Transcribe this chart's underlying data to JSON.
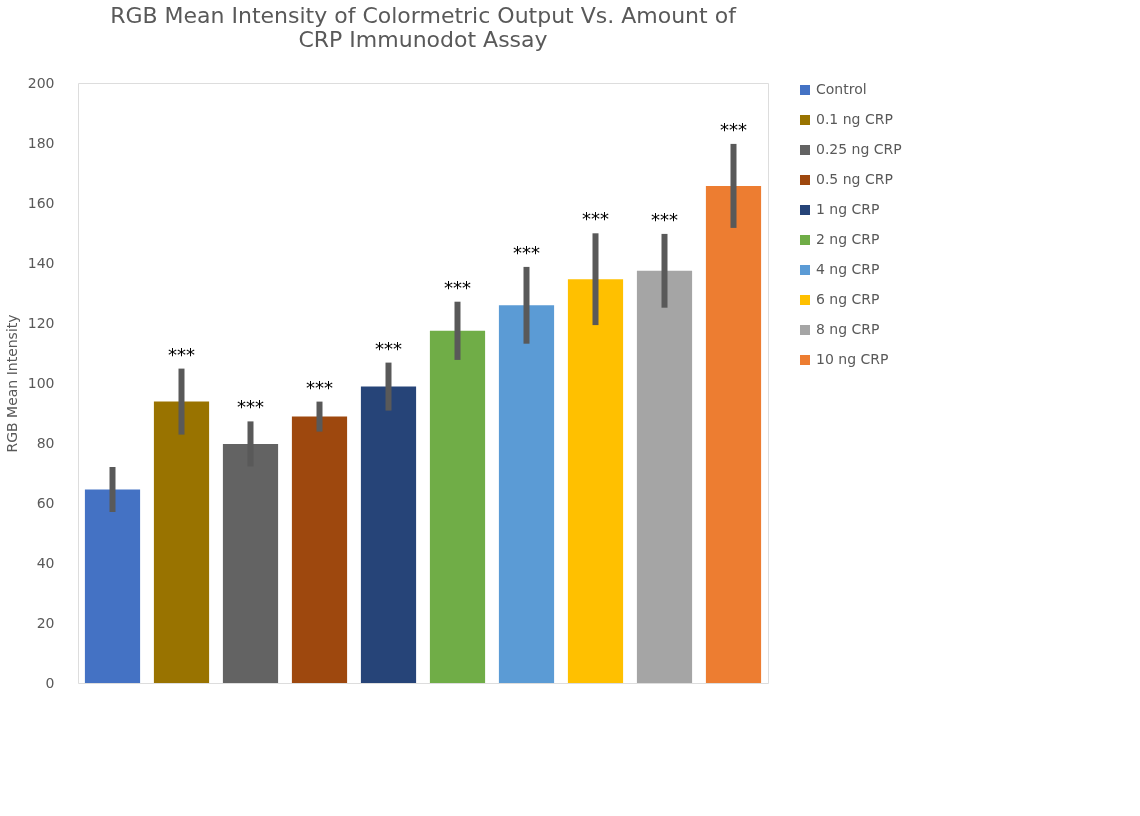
{
  "chart_data": {
    "type": "bar",
    "stacked": true,
    "title": "RGB Mean Intensity of Colormetric Output Vs. Amount of CRP Immunodot Assay",
    "ylabel": "RGB Mean Intensity",
    "categories": [
      null,
      null,
      null,
      null,
      null,
      null,
      null,
      null,
      null,
      null
    ],
    "series": [
      {
        "name": "Control",
        "color": "#4472c4",
        "values": [
          64.5,
          null,
          null,
          null,
          null,
          null,
          null,
          null,
          null,
          null
        ],
        "errors": [
          6.5,
          null,
          null,
          null,
          null,
          null,
          null,
          null,
          null,
          null
        ]
      },
      {
        "name": "0.1 ng CRP",
        "color": "#997300",
        "values": [
          null,
          93.8,
          null,
          null,
          null,
          null,
          null,
          null,
          null,
          null
        ],
        "errors": [
          null,
          10,
          null,
          null,
          null,
          null,
          null,
          null,
          null,
          null
        ]
      },
      {
        "name": "0.25 ng CRP",
        "color": "#636363",
        "values": [
          null,
          null,
          79.7,
          null,
          null,
          null,
          null,
          null,
          null,
          null
        ],
        "errors": [
          null,
          null,
          6.5,
          null,
          null,
          null,
          null,
          null,
          null,
          null
        ]
      },
      {
        "name": "0.5 ng CRP",
        "color": "#9e480e",
        "values": [
          null,
          null,
          null,
          88.8,
          null,
          null,
          null,
          null,
          null,
          null
        ],
        "errors": [
          null,
          null,
          null,
          4,
          null,
          null,
          null,
          null,
          null,
          null
        ]
      },
      {
        "name": "1 ng CRP",
        "color": "#264478",
        "values": [
          null,
          null,
          null,
          null,
          98.8,
          null,
          null,
          null,
          null,
          null
        ],
        "errors": [
          null,
          null,
          null,
          null,
          7,
          null,
          null,
          null,
          null,
          null
        ]
      },
      {
        "name": "2 ng CRP",
        "color": "#70ad47",
        "values": [
          null,
          null,
          null,
          null,
          null,
          117.4,
          null,
          null,
          null,
          null
        ],
        "errors": [
          null,
          null,
          null,
          null,
          null,
          8.7,
          null,
          null,
          null,
          null
        ]
      },
      {
        "name": "4 ng CRP",
        "color": "#5b9bd5",
        "values": [
          null,
          null,
          null,
          null,
          null,
          null,
          125.9,
          null,
          null,
          null
        ],
        "errors": [
          null,
          null,
          null,
          null,
          null,
          null,
          11.8,
          null,
          null,
          null
        ]
      },
      {
        "name": "6 ng CRP",
        "color": "#ffc000",
        "values": [
          null,
          null,
          null,
          null,
          null,
          null,
          null,
          134.6,
          null,
          null
        ],
        "errors": [
          null,
          null,
          null,
          null,
          null,
          null,
          null,
          14.3,
          null,
          null
        ]
      },
      {
        "name": "8 ng CRP",
        "color": "#a5a5a5",
        "values": [
          null,
          null,
          null,
          null,
          null,
          null,
          null,
          null,
          137.4,
          null
        ],
        "errors": [
          null,
          null,
          null,
          null,
          null,
          null,
          null,
          null,
          11.3,
          null
        ]
      },
      {
        "name": "10 ng CRP",
        "color": "#ed7d31",
        "values": [
          null,
          null,
          null,
          null,
          null,
          null,
          null,
          null,
          null,
          165.7
        ],
        "errors": [
          null,
          null,
          null,
          null,
          null,
          null,
          null,
          null,
          null,
          13
        ]
      }
    ],
    "ylim": [
      0,
      200
    ],
    "yticks": [
      0,
      20,
      40,
      60,
      80,
      100,
      120,
      140,
      160,
      180,
      200
    ],
    "grid": false,
    "legend": "right",
    "tick_labels": "y",
    "annotations": [
      {
        "text": "***",
        "y": 103.8
      },
      {
        "text": "***",
        "y": 86.2
      },
      {
        "text": "***",
        "y": 92.8
      },
      {
        "text": "***",
        "y": 105.8
      },
      {
        "text": "***",
        "y": 126.1
      },
      {
        "text": "***",
        "y": 137.7
      },
      {
        "text": "***",
        "y": 148.9
      },
      {
        "text": "***",
        "y": 148.7
      },
      {
        "text": "***",
        "y": 178.7
      }
    ]
  }
}
